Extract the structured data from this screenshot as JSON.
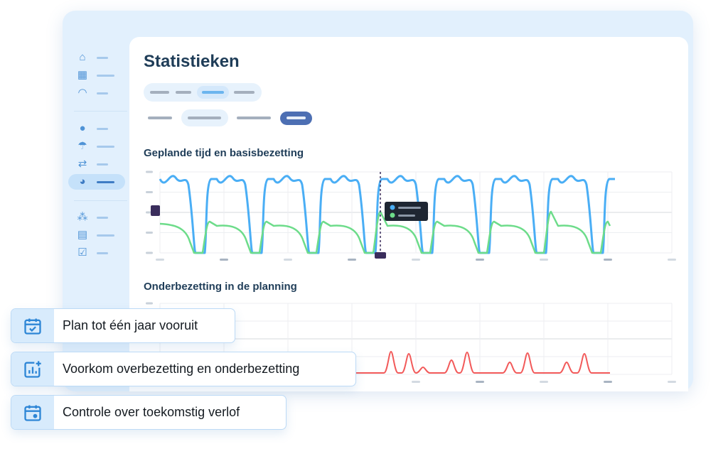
{
  "page": {
    "title": "Statistieken"
  },
  "sidebar": {
    "items": [
      {
        "icon": "home-icon"
      },
      {
        "icon": "calendar-icon"
      },
      {
        "icon": "gauge-icon"
      },
      {
        "icon": "alert-icon"
      },
      {
        "icon": "umbrella-icon"
      },
      {
        "icon": "swap-icon"
      },
      {
        "icon": "pie-chart-icon",
        "active": true
      },
      {
        "icon": "team-icon"
      },
      {
        "icon": "clipboard-icon"
      },
      {
        "icon": "calendar-check-icon"
      }
    ]
  },
  "charts": {
    "planned": {
      "title": "Geplande tijd en basisbezetting",
      "colors": {
        "planned": "#4aaef5",
        "base": "#6ddc8a"
      }
    },
    "under": {
      "title": "Onderbezetting in de planning",
      "colors": {
        "under": "#f25a5a"
      }
    }
  },
  "features": [
    {
      "icon": "calendar-check-icon",
      "label": "Plan tot één jaar vooruit"
    },
    {
      "icon": "chart-plus-icon",
      "label": "Voorkom overbezetting en onderbezetting"
    },
    {
      "icon": "calendar-dot-icon",
      "label": "Controle over toekomstig verlof"
    }
  ],
  "colors": {
    "accent": "#3f6db4",
    "window": "#e2f0fd",
    "text": "#1f3d58"
  }
}
